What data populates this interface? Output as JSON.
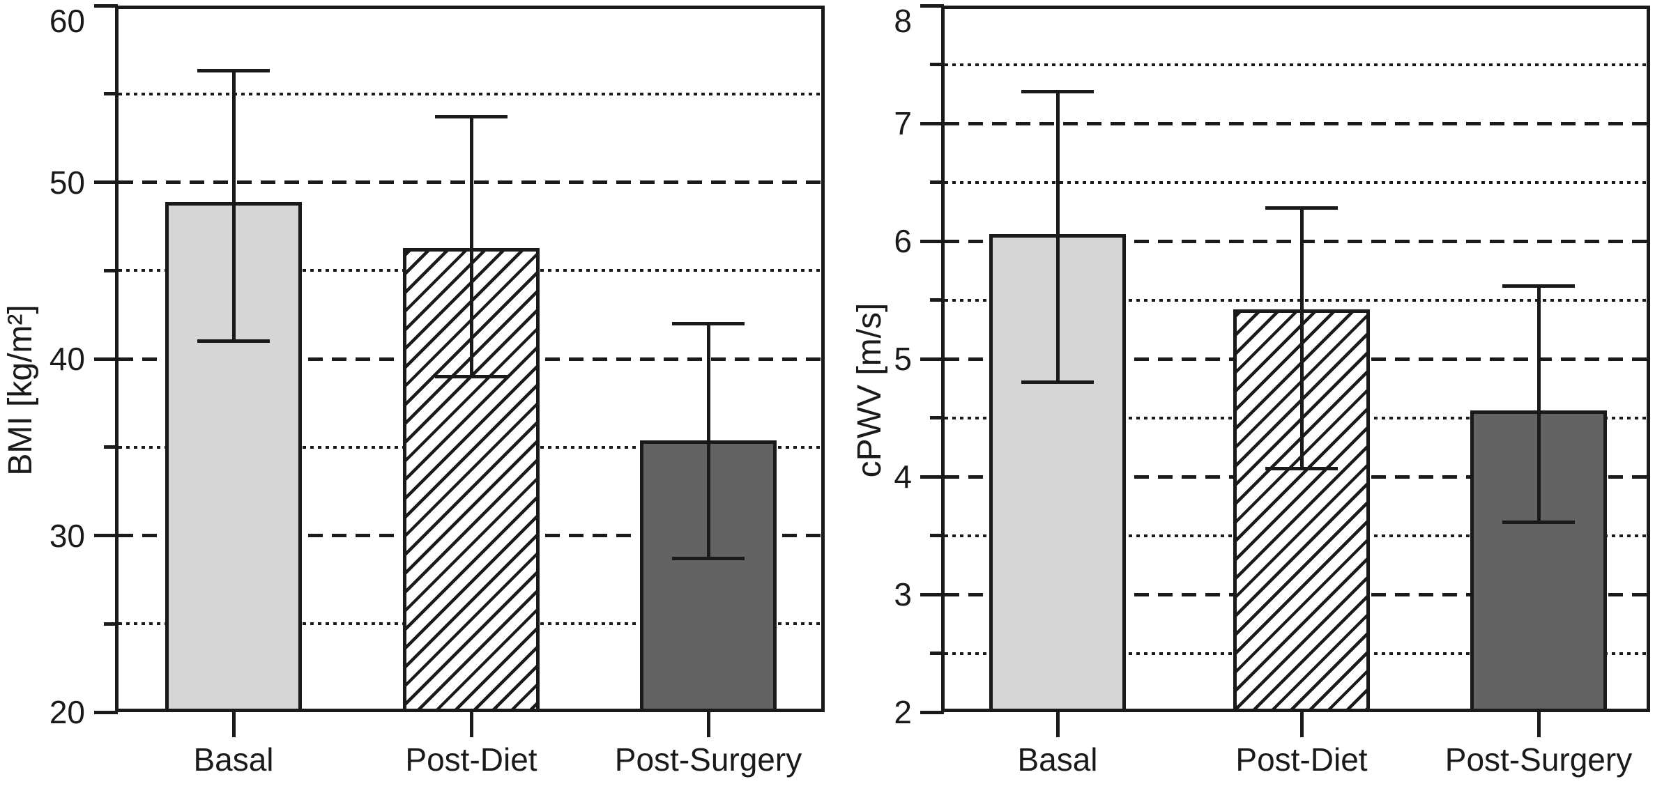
{
  "figure": {
    "background": "#ffffff",
    "line_color": "#1a1a1a",
    "fill_light_gray": "#d6d6d6",
    "fill_dark_gray": "#636363"
  },
  "chart_data": [
    {
      "type": "bar",
      "ylabel": "BMI [kg/m²]",
      "categories": [
        "Basal",
        "Post-Diet",
        "Post-Surgery"
      ],
      "values": [
        48.8,
        46.2,
        35.3
      ],
      "error_low": [
        41.0,
        39.0,
        28.7
      ],
      "error_high": [
        56.3,
        53.7,
        42.0
      ],
      "ylim": [
        20,
        60
      ],
      "yticks": [
        20,
        30,
        40,
        50,
        60
      ],
      "yticks_minor": [
        25,
        35,
        45,
        55
      ],
      "grid_major_values": [
        30,
        40,
        50
      ],
      "grid_minor_values": [
        25,
        35,
        45,
        55
      ],
      "grid": {
        "major_style": "dashed",
        "minor_style": "dotted"
      },
      "legend_position": "none",
      "bar_styles": [
        {
          "pattern": "solid",
          "fill": "#d6d6d6"
        },
        {
          "pattern": "diagonal-hatch",
          "fill": "#ffffff"
        },
        {
          "pattern": "solid",
          "fill": "#636363"
        }
      ]
    },
    {
      "type": "bar",
      "ylabel": "cPWV [m/s]",
      "categories": [
        "Basal",
        "Post-Diet",
        "Post-Surgery"
      ],
      "values": [
        6.05,
        5.41,
        4.55
      ],
      "error_low": [
        4.8,
        4.07,
        3.61
      ],
      "error_high": [
        7.27,
        6.28,
        5.62
      ],
      "ylim": [
        2,
        8
      ],
      "yticks": [
        2,
        3,
        4,
        5,
        6,
        7,
        8
      ],
      "yticks_minor": [
        2.5,
        3.5,
        4.5,
        5.5,
        6.5,
        7.5
      ],
      "grid_major_values": [
        3,
        4,
        5,
        6,
        7
      ],
      "grid_minor_values": [
        2.5,
        3.5,
        4.5,
        5.5,
        6.5,
        7.5
      ],
      "grid": {
        "major_style": "dashed",
        "minor_style": "dotted"
      },
      "legend_position": "none",
      "bar_styles": [
        {
          "pattern": "solid",
          "fill": "#d6d6d6"
        },
        {
          "pattern": "diagonal-hatch",
          "fill": "#ffffff"
        },
        {
          "pattern": "solid",
          "fill": "#636363"
        }
      ]
    }
  ]
}
